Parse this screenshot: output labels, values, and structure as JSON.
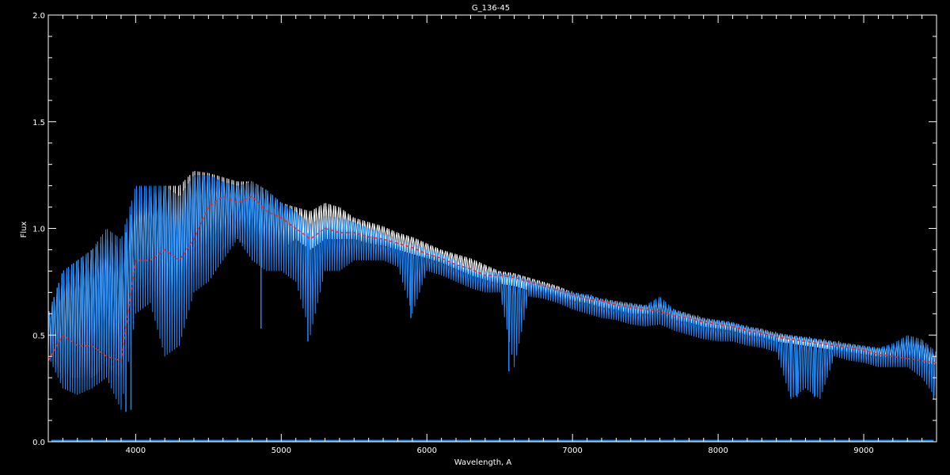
{
  "chart_data": {
    "type": "line",
    "title": "G_136-45",
    "xlabel": "Wavelength, A",
    "ylabel": "Flux",
    "xlim": [
      3400,
      9500
    ],
    "ylim": [
      0.0,
      2.0
    ],
    "x_ticks": [
      4000,
      5000,
      6000,
      7000,
      8000,
      9000
    ],
    "y_ticks": [
      "0.0",
      "0.5",
      "1.0",
      "1.5",
      "2.0"
    ],
    "grid": false,
    "colors": {
      "background": "#000000",
      "axes": "#ffffff",
      "observed_white": "#ffffff",
      "observed_blue": "#1e8cff",
      "model_red": "#ff2020"
    },
    "x": [
      3400,
      3500,
      3600,
      3700,
      3800,
      3900,
      4000,
      4100,
      4200,
      4300,
      4400,
      4500,
      4600,
      4700,
      4800,
      4900,
      5000,
      5100,
      5200,
      5300,
      5400,
      5500,
      5600,
      5700,
      5800,
      5900,
      6000,
      6100,
      6200,
      6300,
      6400,
      6500,
      6600,
      6700,
      6800,
      6900,
      7000,
      7100,
      7200,
      7300,
      7400,
      7500,
      7600,
      7700,
      7800,
      7900,
      8000,
      8100,
      8200,
      8300,
      8400,
      8500,
      8600,
      8700,
      8800,
      8900,
      9000,
      9100,
      9200,
      9300,
      9400,
      9500
    ],
    "series": [
      {
        "style": "white spectrum",
        "min": [
          0.45,
          0.3,
          0.3,
          0.3,
          0.35,
          0.3,
          0.7,
          0.75,
          0.6,
          0.6,
          0.8,
          0.85,
          0.9,
          0.95,
          0.9,
          0.9,
          0.9,
          0.95,
          0.9,
          0.95,
          0.95,
          0.95,
          0.93,
          0.92,
          0.9,
          0.88,
          0.86,
          0.84,
          0.81,
          0.78,
          0.76,
          0.74,
          0.73,
          0.71,
          0.7,
          0.68,
          0.66,
          0.65,
          0.63,
          0.62,
          0.6,
          0.6,
          0.59,
          0.57,
          0.56,
          0.54,
          0.53,
          0.52,
          0.5,
          0.49,
          0.47,
          0.46,
          0.45,
          0.44,
          0.43,
          0.42,
          0.41,
          0.4,
          0.39,
          0.38,
          0.37,
          0.36
        ],
        "max": [
          0.6,
          0.8,
          0.85,
          0.9,
          0.95,
          0.9,
          1.1,
          1.15,
          1.2,
          1.2,
          1.27,
          1.26,
          1.24,
          1.22,
          1.22,
          1.18,
          1.12,
          1.1,
          1.08,
          1.12,
          1.1,
          1.05,
          1.03,
          1.01,
          0.98,
          0.96,
          0.93,
          0.9,
          0.88,
          0.86,
          0.83,
          0.8,
          0.79,
          0.77,
          0.75,
          0.73,
          0.7,
          0.69,
          0.67,
          0.66,
          0.65,
          0.64,
          0.65,
          0.62,
          0.6,
          0.58,
          0.57,
          0.56,
          0.54,
          0.53,
          0.51,
          0.5,
          0.49,
          0.48,
          0.47,
          0.46,
          0.45,
          0.44,
          0.45,
          0.48,
          0.47,
          0.4
        ]
      },
      {
        "style": "blue spectrum",
        "min": [
          0.4,
          0.25,
          0.22,
          0.25,
          0.3,
          0.15,
          0.6,
          0.65,
          0.4,
          0.45,
          0.7,
          0.75,
          0.85,
          0.95,
          0.85,
          0.8,
          0.8,
          0.75,
          0.5,
          0.8,
          0.8,
          0.85,
          0.85,
          0.85,
          0.82,
          0.6,
          0.8,
          0.78,
          0.75,
          0.72,
          0.7,
          0.7,
          0.35,
          0.68,
          0.67,
          0.65,
          0.62,
          0.6,
          0.58,
          0.57,
          0.55,
          0.54,
          0.55,
          0.52,
          0.5,
          0.48,
          0.47,
          0.47,
          0.45,
          0.44,
          0.42,
          0.2,
          0.25,
          0.2,
          0.4,
          0.38,
          0.37,
          0.35,
          0.35,
          0.35,
          0.3,
          0.2
        ],
        "max": [
          0.6,
          0.8,
          0.85,
          0.9,
          1.0,
          0.95,
          1.2,
          1.2,
          1.2,
          1.15,
          1.25,
          1.25,
          1.22,
          1.2,
          1.22,
          1.18,
          1.12,
          1.08,
          1.02,
          1.06,
          1.05,
          1.03,
          1.0,
          0.98,
          0.95,
          0.93,
          0.9,
          0.88,
          0.85,
          0.82,
          0.8,
          0.79,
          0.78,
          0.76,
          0.74,
          0.72,
          0.7,
          0.69,
          0.67,
          0.66,
          0.65,
          0.64,
          0.68,
          0.62,
          0.6,
          0.58,
          0.57,
          0.56,
          0.54,
          0.53,
          0.51,
          0.5,
          0.49,
          0.48,
          0.47,
          0.46,
          0.45,
          0.44,
          0.46,
          0.5,
          0.48,
          0.42
        ]
      },
      {
        "style": "red dashed model",
        "values": [
          0.38,
          0.5,
          0.45,
          0.45,
          0.4,
          0.38,
          0.85,
          0.85,
          0.9,
          0.85,
          0.95,
          1.1,
          1.15,
          1.12,
          1.15,
          1.08,
          1.05,
          1.0,
          0.95,
          1.0,
          0.98,
          0.98,
          0.96,
          0.95,
          0.93,
          0.91,
          0.88,
          0.86,
          0.83,
          0.81,
          0.78,
          0.78,
          0.77,
          0.75,
          0.73,
          0.71,
          0.69,
          0.67,
          0.66,
          0.64,
          0.63,
          0.62,
          0.61,
          0.59,
          0.58,
          0.56,
          0.55,
          0.54,
          0.52,
          0.51,
          0.49,
          0.48,
          0.47,
          0.46,
          0.45,
          0.44,
          0.43,
          0.41,
          0.4,
          0.39,
          0.38,
          0.37
        ]
      }
    ],
    "absorption_lines": [
      {
        "x": 3933,
        "y": 0.14
      },
      {
        "x": 3968,
        "y": 0.15
      },
      {
        "x": 4861,
        "y": 0.53
      },
      {
        "x": 5183,
        "y": 0.47
      },
      {
        "x": 5890,
        "y": 0.58
      },
      {
        "x": 6563,
        "y": 0.33
      },
      {
        "x": 8498,
        "y": 0.21
      },
      {
        "x": 8542,
        "y": 0.21
      },
      {
        "x": 8662,
        "y": 0.21
      },
      {
        "x": 9480,
        "y": 0.2
      }
    ],
    "zero_level": 0.005
  }
}
